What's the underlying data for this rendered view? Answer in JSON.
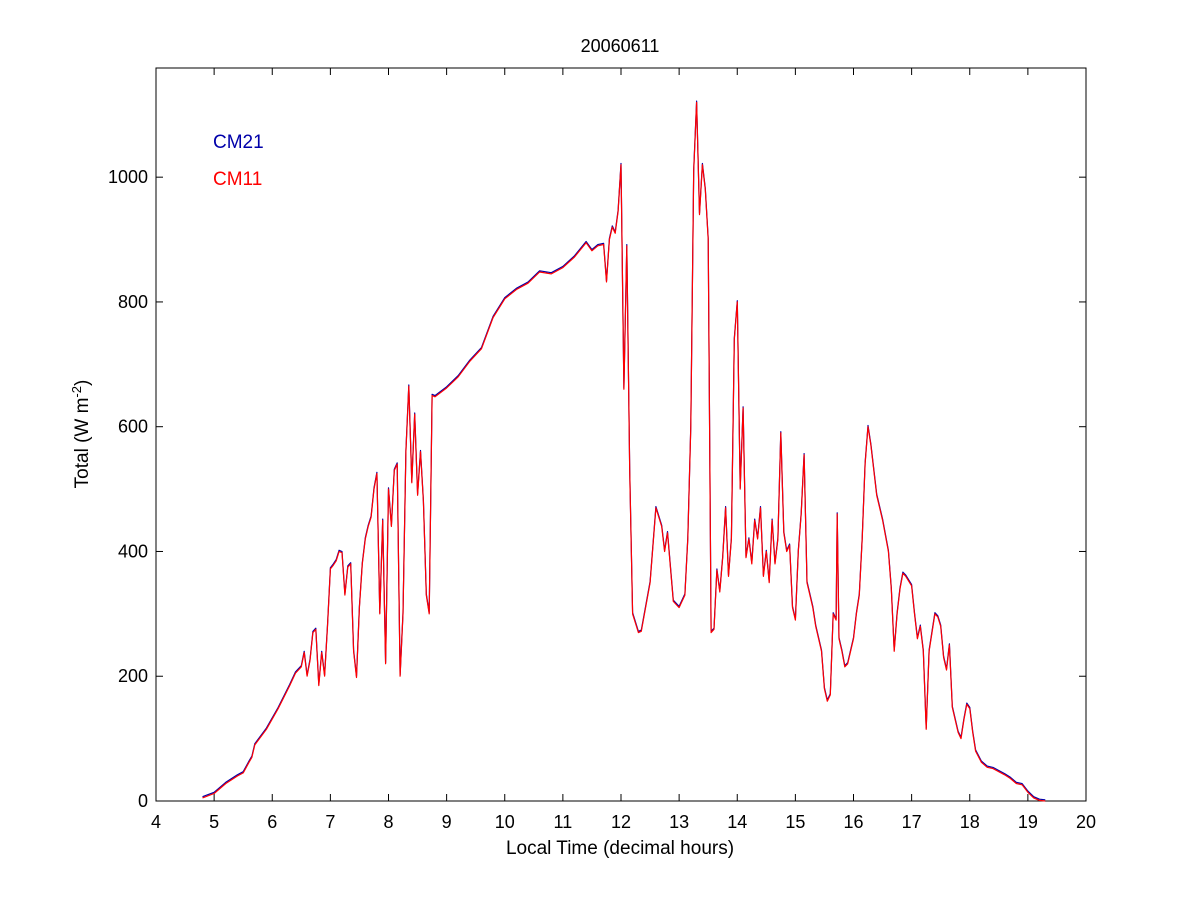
{
  "chart_data": {
    "type": "line",
    "title": "20060611",
    "xlabel": "Local Time (decimal hours)",
    "ylabel": {
      "main": "Total (W m",
      "sup": "-2",
      "tail": ")"
    },
    "xlim": [
      4,
      20
    ],
    "ylim": [
      0,
      1175
    ],
    "xticks": [
      4,
      5,
      6,
      7,
      8,
      9,
      10,
      11,
      12,
      13,
      14,
      15,
      16,
      17,
      18,
      19,
      20
    ],
    "yticks": [
      0,
      200,
      400,
      600,
      800,
      1000
    ],
    "grid": false,
    "legend_position": "top-left",
    "series": [
      {
        "name": "CM21",
        "color": "#0000aa"
      },
      {
        "name": "CM11",
        "color": "#ff0000"
      }
    ],
    "points": [
      [
        4.8,
        5
      ],
      [
        5.0,
        12
      ],
      [
        5.2,
        28
      ],
      [
        5.4,
        40
      ],
      [
        5.5,
        45
      ],
      [
        5.6,
        62
      ],
      [
        5.65,
        70
      ],
      [
        5.7,
        90
      ],
      [
        5.9,
        115
      ],
      [
        6.1,
        148
      ],
      [
        6.3,
        185
      ],
      [
        6.4,
        205
      ],
      [
        6.5,
        215
      ],
      [
        6.55,
        238
      ],
      [
        6.6,
        200
      ],
      [
        6.65,
        225
      ],
      [
        6.7,
        270
      ],
      [
        6.75,
        275
      ],
      [
        6.8,
        185
      ],
      [
        6.85,
        238
      ],
      [
        6.9,
        200
      ],
      [
        6.95,
        280
      ],
      [
        7.0,
        372
      ],
      [
        7.05,
        378
      ],
      [
        7.1,
        385
      ],
      [
        7.15,
        400
      ],
      [
        7.2,
        398
      ],
      [
        7.25,
        330
      ],
      [
        7.3,
        375
      ],
      [
        7.35,
        380
      ],
      [
        7.4,
        240
      ],
      [
        7.45,
        198
      ],
      [
        7.5,
        310
      ],
      [
        7.55,
        380
      ],
      [
        7.6,
        420
      ],
      [
        7.65,
        440
      ],
      [
        7.7,
        455
      ],
      [
        7.75,
        500
      ],
      [
        7.8,
        525
      ],
      [
        7.85,
        300
      ],
      [
        7.9,
        450
      ],
      [
        7.95,
        220
      ],
      [
        8.0,
        500
      ],
      [
        8.05,
        440
      ],
      [
        8.1,
        530
      ],
      [
        8.15,
        540
      ],
      [
        8.2,
        200
      ],
      [
        8.25,
        300
      ],
      [
        8.3,
        560
      ],
      [
        8.35,
        665
      ],
      [
        8.4,
        510
      ],
      [
        8.45,
        620
      ],
      [
        8.5,
        490
      ],
      [
        8.55,
        560
      ],
      [
        8.6,
        480
      ],
      [
        8.65,
        330
      ],
      [
        8.7,
        300
      ],
      [
        8.75,
        650
      ],
      [
        8.8,
        648
      ],
      [
        9.0,
        662
      ],
      [
        9.2,
        680
      ],
      [
        9.4,
        705
      ],
      [
        9.6,
        725
      ],
      [
        9.8,
        775
      ],
      [
        10.0,
        805
      ],
      [
        10.2,
        820
      ],
      [
        10.4,
        830
      ],
      [
        10.6,
        848
      ],
      [
        10.8,
        845
      ],
      [
        11.0,
        855
      ],
      [
        11.2,
        872
      ],
      [
        11.4,
        895
      ],
      [
        11.5,
        882
      ],
      [
        11.6,
        890
      ],
      [
        11.7,
        892
      ],
      [
        11.75,
        832
      ],
      [
        11.8,
        900
      ],
      [
        11.85,
        920
      ],
      [
        11.9,
        910
      ],
      [
        11.95,
        945
      ],
      [
        12.0,
        1020
      ],
      [
        12.05,
        660
      ],
      [
        12.1,
        890
      ],
      [
        12.15,
        530
      ],
      [
        12.2,
        300
      ],
      [
        12.3,
        270
      ],
      [
        12.35,
        272
      ],
      [
        12.5,
        350
      ],
      [
        12.6,
        470
      ],
      [
        12.7,
        440
      ],
      [
        12.75,
        400
      ],
      [
        12.8,
        430
      ],
      [
        12.9,
        320
      ],
      [
        13.0,
        310
      ],
      [
        13.1,
        330
      ],
      [
        13.15,
        420
      ],
      [
        13.2,
        600
      ],
      [
        13.25,
        1010
      ],
      [
        13.3,
        1120
      ],
      [
        13.35,
        940
      ],
      [
        13.4,
        1020
      ],
      [
        13.45,
        980
      ],
      [
        13.5,
        900
      ],
      [
        13.55,
        270
      ],
      [
        13.6,
        275
      ],
      [
        13.65,
        370
      ],
      [
        13.7,
        335
      ],
      [
        13.75,
        390
      ],
      [
        13.8,
        470
      ],
      [
        13.85,
        360
      ],
      [
        13.9,
        420
      ],
      [
        13.95,
        740
      ],
      [
        14.0,
        800
      ],
      [
        14.05,
        500
      ],
      [
        14.1,
        630
      ],
      [
        14.15,
        390
      ],
      [
        14.2,
        420
      ],
      [
        14.25,
        380
      ],
      [
        14.3,
        450
      ],
      [
        14.35,
        420
      ],
      [
        14.4,
        470
      ],
      [
        14.45,
        360
      ],
      [
        14.5,
        400
      ],
      [
        14.55,
        350
      ],
      [
        14.6,
        450
      ],
      [
        14.65,
        380
      ],
      [
        14.7,
        420
      ],
      [
        14.75,
        590
      ],
      [
        14.8,
        430
      ],
      [
        14.85,
        400
      ],
      [
        14.9,
        410
      ],
      [
        14.95,
        310
      ],
      [
        15.0,
        290
      ],
      [
        15.05,
        400
      ],
      [
        15.1,
        460
      ],
      [
        15.15,
        555
      ],
      [
        15.2,
        350
      ],
      [
        15.25,
        330
      ],
      [
        15.3,
        310
      ],
      [
        15.35,
        280
      ],
      [
        15.4,
        260
      ],
      [
        15.45,
        240
      ],
      [
        15.5,
        180
      ],
      [
        15.55,
        160
      ],
      [
        15.6,
        170
      ],
      [
        15.65,
        300
      ],
      [
        15.7,
        290
      ],
      [
        15.72,
        460
      ],
      [
        15.75,
        260
      ],
      [
        15.8,
        240
      ],
      [
        15.85,
        215
      ],
      [
        15.9,
        220
      ],
      [
        15.95,
        240
      ],
      [
        16.0,
        260
      ],
      [
        16.05,
        300
      ],
      [
        16.1,
        330
      ],
      [
        16.15,
        420
      ],
      [
        16.2,
        540
      ],
      [
        16.25,
        600
      ],
      [
        16.3,
        570
      ],
      [
        16.4,
        490
      ],
      [
        16.5,
        450
      ],
      [
        16.6,
        400
      ],
      [
        16.65,
        340
      ],
      [
        16.7,
        240
      ],
      [
        16.75,
        300
      ],
      [
        16.8,
        340
      ],
      [
        16.85,
        365
      ],
      [
        16.9,
        360
      ],
      [
        17.0,
        345
      ],
      [
        17.05,
        300
      ],
      [
        17.1,
        260
      ],
      [
        17.15,
        280
      ],
      [
        17.2,
        240
      ],
      [
        17.25,
        115
      ],
      [
        17.3,
        240
      ],
      [
        17.35,
        270
      ],
      [
        17.4,
        300
      ],
      [
        17.45,
        295
      ],
      [
        17.5,
        280
      ],
      [
        17.55,
        230
      ],
      [
        17.6,
        210
      ],
      [
        17.65,
        250
      ],
      [
        17.7,
        150
      ],
      [
        17.75,
        130
      ],
      [
        17.8,
        110
      ],
      [
        17.85,
        100
      ],
      [
        17.9,
        130
      ],
      [
        17.95,
        155
      ],
      [
        18.0,
        148
      ],
      [
        18.05,
        110
      ],
      [
        18.1,
        80
      ],
      [
        18.2,
        62
      ],
      [
        18.3,
        54
      ],
      [
        18.4,
        52
      ],
      [
        18.5,
        47
      ],
      [
        18.6,
        42
      ],
      [
        18.7,
        36
      ],
      [
        18.8,
        28
      ],
      [
        18.9,
        26
      ],
      [
        19.0,
        14
      ],
      [
        19.1,
        5
      ],
      [
        19.2,
        1
      ],
      [
        19.3,
        0
      ]
    ]
  }
}
